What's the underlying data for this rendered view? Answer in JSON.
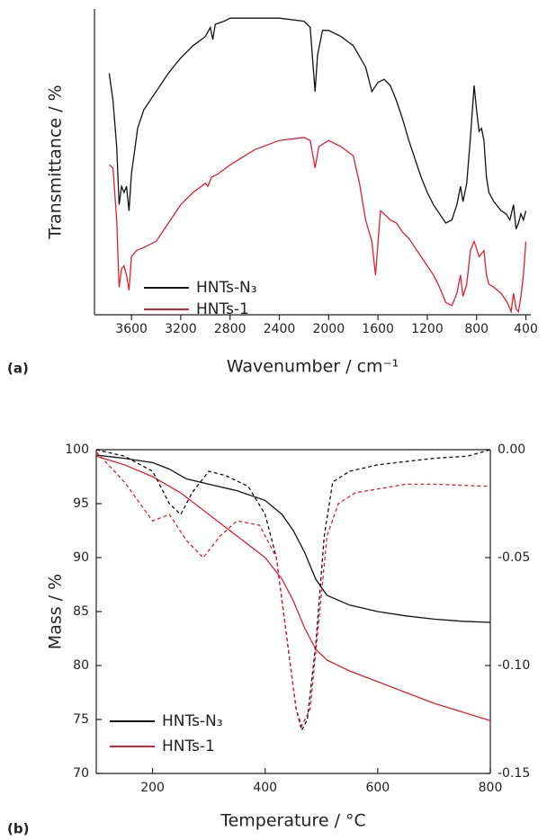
{
  "chart_data": [
    {
      "type": "line",
      "panel_label": "(a)",
      "x_label": "Wavenumber / cm⁻¹",
      "y_label": "Transmittance / %",
      "xlim": [
        3900,
        360
      ],
      "xticks": [
        3600,
        3200,
        2800,
        2400,
        2000,
        1600,
        1200,
        800,
        400
      ],
      "ylim": [
        0,
        100
      ],
      "legend": "lower left",
      "series": [
        {
          "name": "HNTs-N₃",
          "color": "#111111",
          "x": [
            3780,
            3750,
            3720,
            3700,
            3680,
            3660,
            3640,
            3620,
            3600,
            3550,
            3500,
            3400,
            3300,
            3200,
            3100,
            3000,
            2960,
            2940,
            2920,
            2850,
            2800,
            2600,
            2400,
            2200,
            2150,
            2110,
            2090,
            2050,
            2000,
            1900,
            1800,
            1700,
            1650,
            1600,
            1550,
            1500,
            1450,
            1400,
            1350,
            1300,
            1250,
            1200,
            1150,
            1100,
            1050,
            1000,
            960,
            930,
            910,
            880,
            850,
            820,
            800,
            780,
            760,
            740,
            720,
            700,
            660,
            600,
            560,
            530,
            500,
            480,
            460,
            440,
            420,
            400
          ],
          "values": [
            79,
            70,
            55,
            36,
            42,
            40,
            42,
            34,
            46,
            61,
            67,
            73,
            79,
            84,
            88,
            91,
            94,
            90,
            95,
            96,
            97,
            97,
            97,
            96,
            94,
            73,
            85,
            93,
            93,
            91,
            88,
            81,
            73,
            76,
            77,
            75,
            70,
            64,
            57,
            51,
            45,
            40,
            36,
            33,
            30,
            31,
            36,
            42,
            37,
            43,
            58,
            75,
            67,
            60,
            61,
            57,
            45,
            40,
            37,
            34,
            33,
            31,
            36,
            28,
            30,
            33,
            31,
            34
          ]
        },
        {
          "name": "HNTs-1",
          "color": "#e0202a",
          "x": [
            3780,
            3750,
            3720,
            3700,
            3680,
            3660,
            3640,
            3620,
            3600,
            3560,
            3500,
            3400,
            3300,
            3200,
            3100,
            3000,
            2980,
            2950,
            2900,
            2800,
            2600,
            2400,
            2200,
            2150,
            2110,
            2080,
            2000,
            1900,
            1800,
            1750,
            1700,
            1650,
            1620,
            1580,
            1550,
            1500,
            1450,
            1400,
            1350,
            1300,
            1250,
            1200,
            1150,
            1100,
            1050,
            1000,
            960,
            930,
            910,
            880,
            850,
            820,
            780,
            740,
            720,
            700,
            660,
            600,
            550,
            520,
            500,
            480,
            460,
            440,
            420,
            400
          ],
          "values": [
            49,
            48,
            31,
            9,
            15,
            16,
            13,
            8,
            19,
            21,
            22,
            24,
            30,
            36,
            40,
            43,
            42,
            45,
            46,
            49,
            54,
            57,
            58,
            57,
            48,
            55,
            57,
            55,
            52,
            43,
            31,
            24,
            13,
            34,
            33,
            31,
            30,
            27,
            25,
            22,
            19,
            16,
            13,
            9,
            4,
            3,
            7,
            13,
            6,
            10,
            21,
            24,
            19,
            21,
            13,
            10,
            9,
            7,
            4,
            1,
            7,
            2,
            1,
            6,
            13,
            24
          ]
        }
      ]
    },
    {
      "type": "line",
      "panel_label": "(b)",
      "x_label": "Temperature / °C",
      "y_label": "Mass / %",
      "xlim": [
        100,
        800
      ],
      "xticks": [
        200,
        400,
        600,
        800
      ],
      "ylim": [
        70,
        100
      ],
      "yticks": [
        70,
        75,
        80,
        85,
        90,
        95,
        100
      ],
      "y2lim": [
        -0.15,
        0.0
      ],
      "y2ticks": [
        {
          "value": -0.15,
          "label": "-0.15"
        },
        {
          "value": -0.1,
          "label": "-0.10"
        },
        {
          "value": -0.05,
          "label": "-0.05"
        },
        {
          "value": 0.0,
          "label": "0.00"
        }
      ],
      "legend": "lower left",
      "series": [
        {
          "name": "HNTs-N₃",
          "color": "#111111",
          "x": [
            100,
            150,
            200,
            230,
            260,
            300,
            350,
            400,
            430,
            450,
            470,
            490,
            510,
            550,
            600,
            650,
            700,
            750,
            800
          ],
          "values": [
            99.5,
            99.2,
            98.8,
            98.2,
            97.3,
            96.8,
            96.2,
            95.3,
            94,
            92.5,
            90.5,
            88,
            86.5,
            85.6,
            85,
            84.6,
            84.3,
            84.1,
            84
          ]
        },
        {
          "name": "HNTs-1",
          "color": "#e0202a",
          "x": [
            100,
            150,
            200,
            250,
            300,
            350,
            400,
            430,
            450,
            470,
            490,
            510,
            550,
            600,
            650,
            700,
            750,
            800
          ],
          "values": [
            99.4,
            98.6,
            97.5,
            96,
            94,
            92,
            90,
            88,
            86,
            83.5,
            81.5,
            80.5,
            79.5,
            78.5,
            77.5,
            76.5,
            75.7,
            74.9
          ]
        },
        {
          "color": "#111111",
          "dash": true,
          "axis": "y2",
          "x": [
            100,
            150,
            200,
            230,
            250,
            270,
            300,
            330,
            370,
            400,
            420,
            440,
            455,
            465,
            475,
            490,
            505,
            520,
            550,
            600,
            700,
            760,
            800
          ],
          "values": [
            0,
            -0.003,
            -0.01,
            -0.025,
            -0.03,
            -0.02,
            -0.01,
            -0.012,
            -0.017,
            -0.03,
            -0.05,
            -0.09,
            -0.12,
            -0.13,
            -0.125,
            -0.09,
            -0.04,
            -0.015,
            -0.01,
            -0.007,
            -0.004,
            -0.003,
            0
          ]
        },
        {
          "color": "#e0202a",
          "dash": true,
          "axis": "y2",
          "x": [
            100,
            150,
            200,
            230,
            260,
            290,
            320,
            350,
            390,
            420,
            440,
            455,
            465,
            480,
            495,
            510,
            530,
            560,
            650,
            700,
            800
          ],
          "values": [
            -0.001,
            -0.015,
            -0.033,
            -0.03,
            -0.042,
            -0.05,
            -0.04,
            -0.033,
            -0.035,
            -0.05,
            -0.09,
            -0.12,
            -0.128,
            -0.12,
            -0.08,
            -0.04,
            -0.025,
            -0.02,
            -0.016,
            -0.016,
            -0.017
          ]
        }
      ]
    }
  ]
}
